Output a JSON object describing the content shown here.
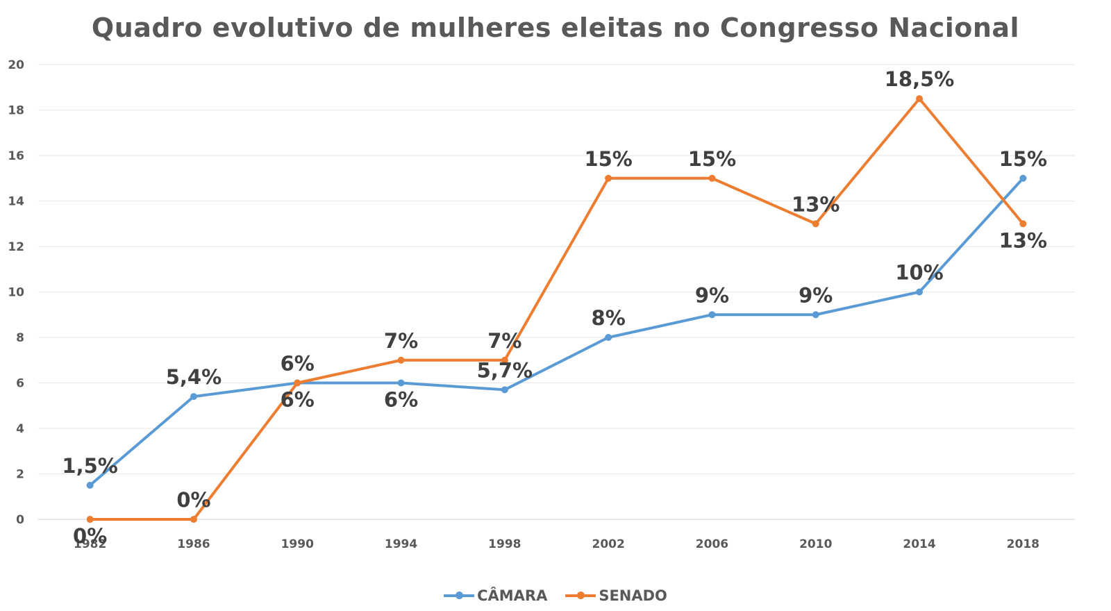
{
  "chart_data": {
    "type": "line",
    "title": "Quadro evolutivo de mulheres eleitas no Congresso Nacional",
    "categories": [
      "1982",
      "1986",
      "1990",
      "1994",
      "1998",
      "2002",
      "2006",
      "2010",
      "2014",
      "2018"
    ],
    "ylim": [
      0,
      20
    ],
    "yticks": [
      0,
      2,
      4,
      6,
      8,
      10,
      12,
      14,
      16,
      18,
      20
    ],
    "grid": true,
    "legend_position": "bottom",
    "series": [
      {
        "name": "CÂMARA",
        "color": "#5B9BD5",
        "values": [
          1.5,
          5.4,
          6,
          6,
          5.7,
          8,
          9,
          9,
          10,
          15
        ],
        "labels": [
          "1,5%",
          "5,4%",
          "6%",
          "6%",
          "5,7%",
          "8%",
          "9%",
          "9%",
          "10%",
          "15%"
        ]
      },
      {
        "name": "SENADO",
        "color": "#ED7D31",
        "values": [
          0,
          0,
          6,
          7,
          7,
          15,
          15,
          13,
          18.5,
          13
        ],
        "labels": [
          "0%",
          "0%",
          "6%",
          "7%",
          "7%",
          "15%",
          "15%",
          "13%",
          "18,5%",
          "13%"
        ]
      }
    ]
  }
}
